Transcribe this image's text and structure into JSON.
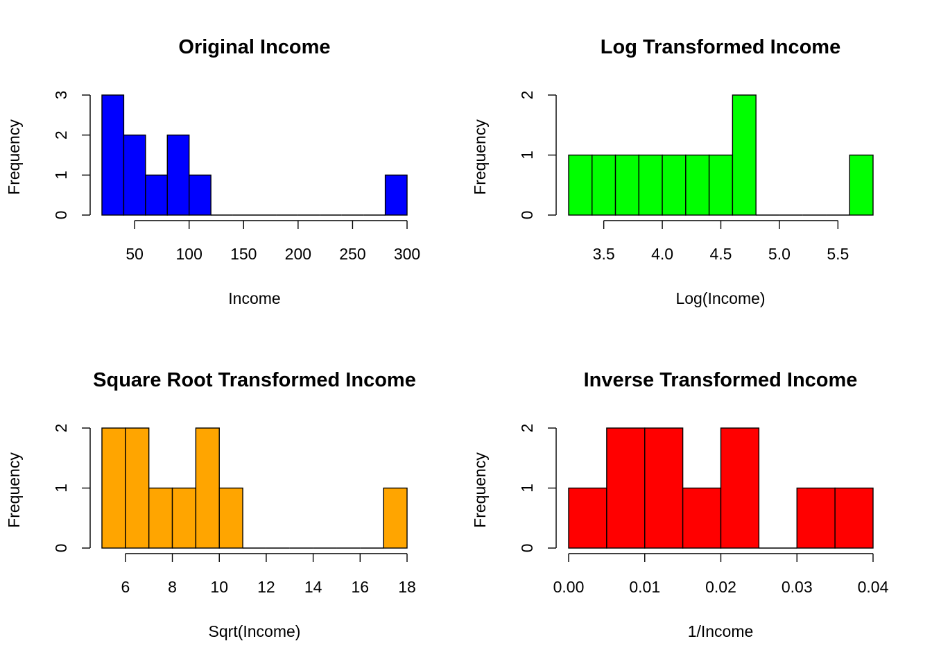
{
  "figure": {
    "panels": [
      {
        "id": "original",
        "title": "Original Income",
        "xlabel": "Income",
        "ylabel": "Frequency",
        "color": "#0000FF"
      },
      {
        "id": "log",
        "title": "Log Transformed Income",
        "xlabel": "Log(Income)",
        "ylabel": "Frequency",
        "color": "#00FF00"
      },
      {
        "id": "sqrt",
        "title": "Square Root Transformed Income",
        "xlabel": "Sqrt(Income)",
        "ylabel": "Frequency",
        "color": "#FFA500"
      },
      {
        "id": "inverse",
        "title": "Inverse Transformed Income",
        "xlabel": "1/Income",
        "ylabel": "Frequency",
        "color": "#FF0000"
      }
    ]
  },
  "chart_data": [
    {
      "type": "bar",
      "title": "Original Income",
      "xlabel": "Income",
      "ylabel": "Frequency",
      "bin_edges": [
        20,
        40,
        60,
        80,
        100,
        120,
        140,
        160,
        180,
        200,
        220,
        240,
        260,
        280,
        300
      ],
      "counts": [
        3,
        2,
        1,
        2,
        1,
        0,
        0,
        0,
        0,
        0,
        0,
        0,
        0,
        1
      ],
      "xticks": [
        50,
        100,
        150,
        200,
        250,
        300
      ],
      "xtick_labels": [
        "50",
        "100",
        "150",
        "200",
        "250",
        "300"
      ],
      "yticks": [
        0,
        1,
        2,
        3
      ],
      "ytick_labels": [
        "0",
        "1",
        "2",
        "3"
      ],
      "ylim": [
        0,
        3
      ],
      "color": "#0000FF"
    },
    {
      "type": "bar",
      "title": "Log Transformed Income",
      "xlabel": "Log(Income)",
      "ylabel": "Frequency",
      "bin_edges": [
        3.2,
        3.4,
        3.6,
        3.8,
        4.0,
        4.2,
        4.4,
        4.6,
        4.8,
        5.0,
        5.2,
        5.4,
        5.6,
        5.8
      ],
      "counts": [
        1,
        1,
        1,
        1,
        1,
        1,
        1,
        2,
        0,
        0,
        0,
        0,
        1
      ],
      "xticks": [
        3.5,
        4.0,
        4.5,
        5.0,
        5.5
      ],
      "xtick_labels": [
        "3.5",
        "4.0",
        "4.5",
        "5.0",
        "5.5"
      ],
      "yticks": [
        0,
        1,
        2
      ],
      "ytick_labels": [
        "0",
        "1",
        "2"
      ],
      "ylim": [
        0,
        2
      ],
      "color": "#00FF00"
    },
    {
      "type": "bar",
      "title": "Square Root Transformed Income",
      "xlabel": "Sqrt(Income)",
      "ylabel": "Frequency",
      "bin_edges": [
        5,
        6,
        7,
        8,
        9,
        10,
        11,
        12,
        13,
        14,
        15,
        16,
        17,
        18
      ],
      "counts": [
        2,
        2,
        1,
        1,
        2,
        1,
        0,
        0,
        0,
        0,
        0,
        0,
        1
      ],
      "xticks": [
        6,
        8,
        10,
        12,
        14,
        16,
        18
      ],
      "xtick_labels": [
        "6",
        "8",
        "10",
        "12",
        "14",
        "16",
        "18"
      ],
      "yticks": [
        0,
        1,
        2
      ],
      "ytick_labels": [
        "0",
        "1",
        "2"
      ],
      "ylim": [
        0,
        2
      ],
      "color": "#FFA500"
    },
    {
      "type": "bar",
      "title": "Inverse Transformed Income",
      "xlabel": "1/Income",
      "ylabel": "Frequency",
      "bin_edges": [
        0.0,
        0.005,
        0.01,
        0.015,
        0.02,
        0.025,
        0.03,
        0.035,
        0.04
      ],
      "counts": [
        1,
        2,
        2,
        1,
        2,
        0,
        1,
        1
      ],
      "xticks": [
        0.0,
        0.01,
        0.02,
        0.03,
        0.04
      ],
      "xtick_labels": [
        "0.00",
        "0.01",
        "0.02",
        "0.03",
        "0.04"
      ],
      "yticks": [
        0,
        1,
        2
      ],
      "ytick_labels": [
        "0",
        "1",
        "2"
      ],
      "ylim": [
        0,
        2
      ],
      "color": "#FF0000"
    }
  ]
}
